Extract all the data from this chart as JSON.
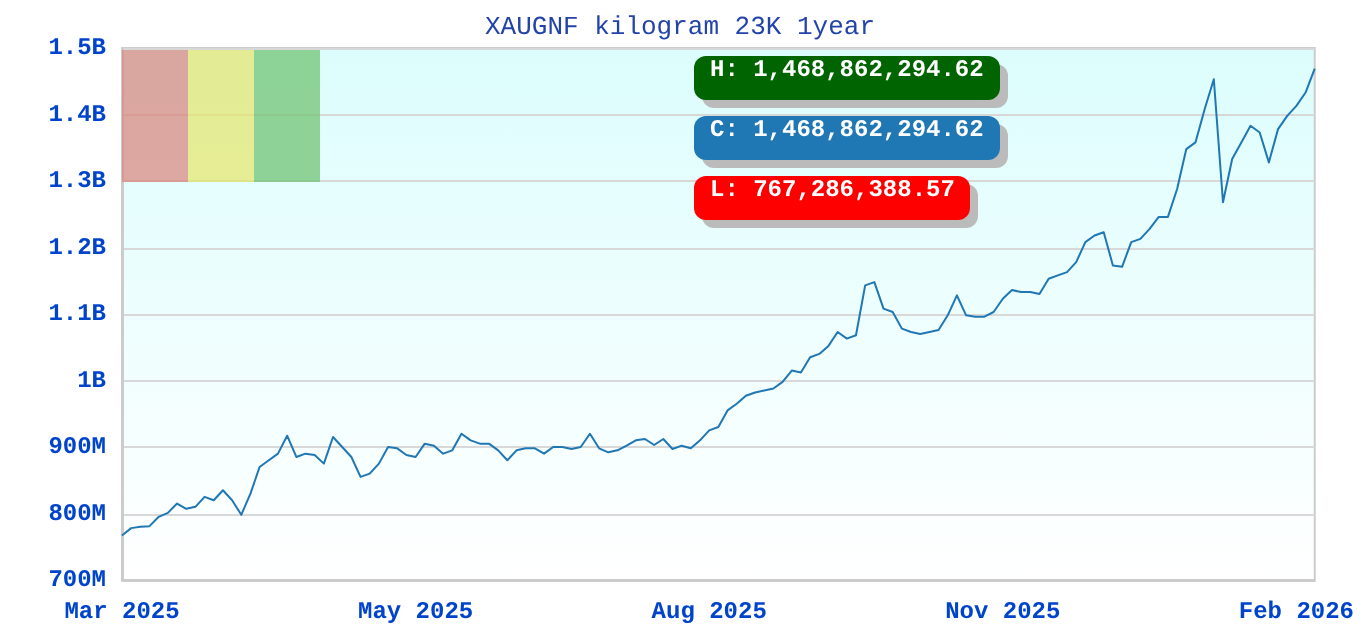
{
  "chart_data": {
    "type": "line",
    "title": "XAUGNF kilogram 23K 1year",
    "categories": [
      "Mar 2025",
      null,
      null,
      null,
      null,
      null,
      null,
      null,
      null,
      null,
      null,
      null,
      null,
      null,
      null,
      null,
      null,
      null,
      null,
      null,
      null,
      null,
      null,
      null,
      null,
      null,
      null,
      null,
      null,
      null,
      null,
      null,
      "May 2025",
      null,
      null,
      null,
      null,
      null,
      null,
      null,
      null,
      null,
      null,
      null,
      null,
      null,
      null,
      null,
      null,
      null,
      null,
      null,
      null,
      null,
      null,
      null,
      null,
      null,
      null,
      null,
      null,
      null,
      null,
      null,
      "Aug 2025",
      null,
      null,
      null,
      null,
      null,
      null,
      null,
      null,
      null,
      null,
      null,
      null,
      null,
      null,
      null,
      null,
      null,
      null,
      null,
      null,
      null,
      null,
      null,
      null,
      null,
      null,
      null,
      null,
      null,
      null,
      null,
      "Nov 2025",
      null,
      null,
      null,
      null,
      null,
      null,
      null,
      null,
      null,
      null,
      null,
      null,
      null,
      null,
      null,
      null,
      null,
      null,
      null,
      null,
      null,
      null,
      null,
      null,
      null,
      null,
      null,
      null,
      null,
      null,
      null,
      "Feb 2026",
      null,
      null
    ],
    "series": [
      {
        "color": "#1f77b4",
        "values": [
          767000000.0,
          778000000.0,
          780000000.0,
          781000000.0,
          795000000.0,
          801000000.0,
          815000000.0,
          807000000.0,
          810000000.0,
          825000000.0,
          820000000.0,
          835000000.0,
          820000000.0,
          798000000.0,
          830000000.0,
          870000000.0,
          880000000.0,
          890000000.0,
          917000000.0,
          885000000.0,
          890000000.0,
          888000000.0,
          875000000.0,
          915000000.0,
          900000000.0,
          885000000.0,
          855000000.0,
          860000000.0,
          875000000.0,
          900000000.0,
          898000000.0,
          888000000.0,
          885000000.0,
          905000000.0,
          902000000.0,
          890000000.0,
          895000000.0,
          920000000.0,
          910000000.0,
          905000000.0,
          905000000.0,
          895000000.0,
          880000000.0,
          895000000.0,
          898000000.0,
          898000000.0,
          890000000.0,
          900000000.0,
          900000000.0,
          897000000.0,
          900000000.0,
          920000000.0,
          898000000.0,
          892000000.0,
          895000000.0,
          902000000.0,
          910000000.0,
          912000000.0,
          903000000.0,
          912000000.0,
          897000000.0,
          902000000.0,
          898000000.0,
          910000000.0,
          925000000.0,
          930000000.0,
          955000000.0,
          965000000.0,
          977000000.0,
          982000000.0,
          985000000.0,
          988000000.0,
          998000000.0,
          1015000000.0,
          1012000000.0,
          1035000000.0,
          1040000000.0,
          1052000000.0,
          1073000000.0,
          1063000000.0,
          1068000000.0,
          1143000000.0,
          1148000000.0,
          1108000000.0,
          1103000000.0,
          1078000000.0,
          1073000000.0,
          1070000000.0,
          1073000000.0,
          1076000000.0,
          1098000000.0,
          1128000000.0,
          1098000000.0,
          1096000000.0,
          1096000000.0,
          1103000000.0,
          1123000000.0,
          1136000000.0,
          1133000000.0,
          1133000000.0,
          1130000000.0,
          1153000000.0,
          1158000000.0,
          1163000000.0,
          1178000000.0,
          1208000000.0,
          1218000000.0,
          1223000000.0,
          1173000000.0,
          1171000000.0,
          1208000000.0,
          1213000000.0,
          1228000000.0,
          1246000000.0,
          1246000000.0,
          1288000000.0,
          1348000000.0,
          1358000000.0,
          1408000000.0,
          1453000000.0,
          1268000000.0,
          1333000000.0,
          1358000000.0,
          1383000000.0,
          1373000000.0,
          1328000000.0,
          1378000000.0,
          1398000000.0,
          1413000000.0,
          1433000000.0,
          1469000000.0
        ]
      }
    ],
    "ylim": [
      700000000,
      1500000000
    ],
    "yticks": [
      {
        "value": 700000000,
        "label": "700M"
      },
      {
        "value": 800000000,
        "label": "800M"
      },
      {
        "value": 900000000,
        "label": "900M"
      },
      {
        "value": 1000000000,
        "label": "1B"
      },
      {
        "value": 1100000000,
        "label": "1.1B"
      },
      {
        "value": 1200000000,
        "label": "1.2B"
      },
      {
        "value": 1300000000,
        "label": "1.3B"
      },
      {
        "value": 1400000000,
        "label": "1.4B"
      },
      {
        "value": 1500000000,
        "label": "1.5B"
      }
    ],
    "grid": "y",
    "marker": "none",
    "line_style": "solid",
    "annotations": [
      "H: 1,468,862,294.62",
      "C: 1,468,862,294.62",
      "L: 767,286,388.57"
    ]
  }
}
